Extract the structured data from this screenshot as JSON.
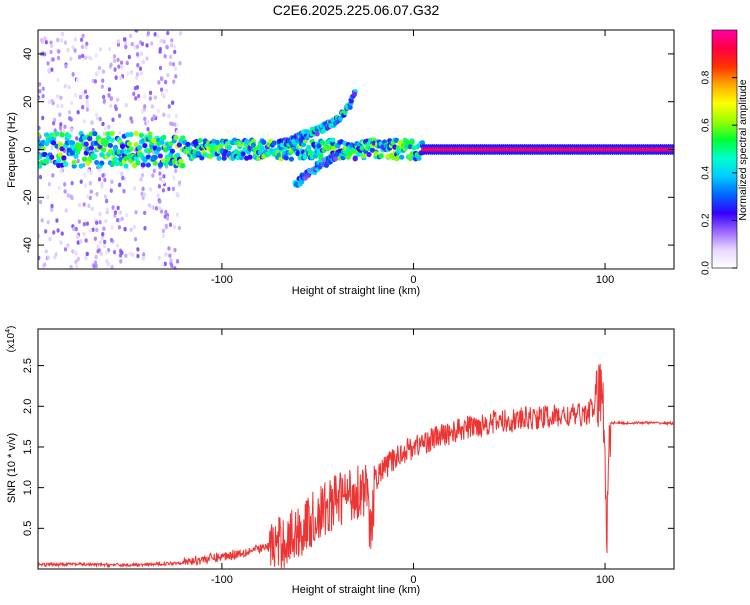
{
  "title": "C2E6.2025.225.06.07.G32",
  "colors": {
    "snr_line": "#ee3333",
    "frame": "#000000"
  },
  "chart_data": [
    {
      "type": "heatmap",
      "xlabel": "Height of straight line (km)",
      "ylabel": "Frequency (Hz)",
      "xlim": [
        -196,
        136
      ],
      "ylim": [
        -50,
        50
      ],
      "x_ticks": [
        -100,
        0,
        100
      ],
      "x_tick_labels": [
        "-100",
        "0",
        "100"
      ],
      "y_ticks": [
        -40,
        -20,
        0,
        20,
        40
      ],
      "y_tick_labels": [
        "-40",
        "-20",
        "0",
        "20",
        "40"
      ],
      "colorbar": {
        "label": "Normalized spectral amplitude",
        "range": [
          0,
          1
        ],
        "ticks": [
          0.0,
          0.2,
          0.4,
          0.6,
          0.8
        ],
        "tick_labels": [
          "0.0",
          "0.2",
          "0.4",
          "0.6",
          "0.8"
        ],
        "colormap": [
          "#ffffff",
          "#e8d8ff",
          "#9966ff",
          "#3300ff",
          "#0066ff",
          "#00ccff",
          "#00ffcc",
          "#00ff33",
          "#99ff00",
          "#ffff00",
          "#ffaa00",
          "#ff3300",
          "#ff0044",
          "#ff00aa"
        ]
      },
      "features": [
        {
          "name": "main-band",
          "x_range": [
            -196,
            136
          ],
          "freq": 0,
          "amplitude": 0.5
        },
        {
          "name": "tone",
          "x_range": [
            5,
            136
          ],
          "freq": 0,
          "amplitude": 0.95
        },
        {
          "name": "rising-branch",
          "x": [
            -70,
            -60,
            -50,
            -40,
            -34,
            -30
          ],
          "freq": [
            2,
            5,
            8,
            12,
            18,
            25
          ],
          "amplitude": 0.35
        },
        {
          "name": "falling-branch",
          "x": [
            -62,
            -55,
            -48,
            -40
          ],
          "freq": [
            -15,
            -10,
            -6,
            -3
          ],
          "amplitude": 0.3
        }
      ]
    },
    {
      "type": "line",
      "xlabel": "Height of straight line (km)",
      "ylabel": "SNR (10 * v/v)",
      "y_multiplier": "(x10",
      "y_multiplier_exp": "4",
      "y_multiplier_close": ")",
      "xlim": [
        -196,
        136
      ],
      "ylim": [
        0,
        2.95
      ],
      "x_ticks": [
        -100,
        0,
        100
      ],
      "x_tick_labels": [
        "-100",
        "0",
        "100"
      ],
      "y_ticks": [
        0.5,
        1.0,
        1.5,
        2.0,
        2.5
      ],
      "y_tick_labels": [
        "0.5",
        "1.0",
        "1.5",
        "2.0",
        "2.5"
      ],
      "series": [
        {
          "x": [
            -196,
            -180,
            -160,
            -140,
            -120,
            -110,
            -100,
            -90,
            -80,
            -70,
            -60,
            -55,
            -50,
            -45,
            -40,
            -35,
            -30,
            -25,
            -22,
            -20,
            -15,
            -10,
            -5,
            0,
            10,
            20,
            30,
            40,
            50,
            60,
            70,
            80,
            90,
            95,
            98,
            100,
            101,
            102,
            103,
            105,
            110,
            120,
            136
          ],
          "y": [
            0.05,
            0.06,
            0.05,
            0.05,
            0.08,
            0.12,
            0.15,
            0.2,
            0.25,
            0.3,
            0.45,
            0.55,
            0.65,
            0.75,
            0.85,
            0.9,
            0.95,
            1.0,
            0.4,
            1.1,
            1.25,
            1.35,
            1.45,
            1.5,
            1.6,
            1.68,
            1.75,
            1.8,
            1.82,
            1.85,
            1.87,
            1.88,
            1.9,
            2.0,
            2.2,
            1.6,
            0.3,
            1.8,
            1.79,
            1.8,
            1.79,
            1.8,
            1.79
          ]
        }
      ]
    }
  ]
}
